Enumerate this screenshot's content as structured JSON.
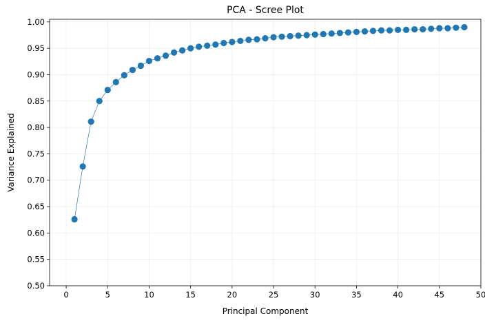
{
  "chart_data": {
    "type": "line",
    "title": "PCA - Scree Plot",
    "xlabel": "Principal Component",
    "ylabel": "Variance Explained",
    "xlim": [
      -2,
      50
    ],
    "ylim": [
      0.5,
      1.005
    ],
    "xticks": [
      0,
      5,
      10,
      15,
      20,
      25,
      30,
      35,
      40,
      45,
      50
    ],
    "yticks": [
      0.5,
      0.55,
      0.6,
      0.65,
      0.7,
      0.75,
      0.8,
      0.85,
      0.9,
      0.95,
      1.0
    ],
    "xtick_labels": [
      "0",
      "5",
      "10",
      "15",
      "20",
      "25",
      "30",
      "35",
      "40",
      "45",
      "50"
    ],
    "ytick_labels": [
      "0.50",
      "0.55",
      "0.60",
      "0.65",
      "0.70",
      "0.75",
      "0.80",
      "0.85",
      "0.90",
      "0.95",
      "1.00"
    ],
    "grid": true,
    "marker": "circle",
    "series": [
      {
        "color": "#1f77b4",
        "x": [
          1,
          2,
          3,
          4,
          5,
          6,
          7,
          8,
          9,
          10,
          11,
          12,
          13,
          14,
          15,
          16,
          17,
          18,
          19,
          20,
          21,
          22,
          23,
          24,
          25,
          26,
          27,
          28,
          29,
          30,
          31,
          32,
          33,
          34,
          35,
          36,
          37,
          38,
          39,
          40,
          41,
          42,
          43,
          44,
          45,
          46,
          47,
          48
        ],
        "values": [
          0.626,
          0.726,
          0.811,
          0.85,
          0.871,
          0.886,
          0.899,
          0.909,
          0.917,
          0.926,
          0.931,
          0.936,
          0.942,
          0.946,
          0.95,
          0.953,
          0.955,
          0.957,
          0.96,
          0.962,
          0.964,
          0.966,
          0.967,
          0.969,
          0.971,
          0.972,
          0.973,
          0.974,
          0.975,
          0.976,
          0.977,
          0.978,
          0.979,
          0.98,
          0.981,
          0.982,
          0.983,
          0.984,
          0.984,
          0.985,
          0.985,
          0.986,
          0.986,
          0.987,
          0.988,
          0.988,
          0.989,
          0.99
        ]
      }
    ]
  }
}
